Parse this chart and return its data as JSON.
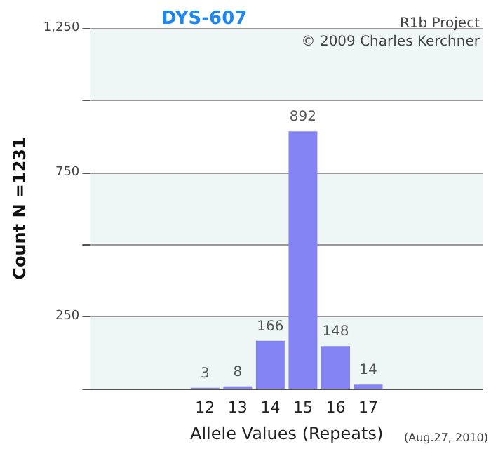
{
  "chart_data": {
    "type": "bar",
    "title": "DYS-607",
    "xlabel": "Allele Values (Repeats)",
    "ylabel": "Count N =1231",
    "categories": [
      null,
      null,
      null,
      "12",
      "13",
      "14",
      "15",
      "16",
      "17",
      null,
      null,
      null
    ],
    "values": [
      null,
      null,
      null,
      3,
      8,
      166,
      892,
      148,
      14,
      null,
      null,
      null
    ],
    "color": "#8484f4",
    "ylim": [
      0,
      1250
    ],
    "yticks": [
      {
        "value": 0,
        "label": null
      },
      250,
      {
        "value": 500,
        "label": null
      },
      {
        "value": 750,
        "label": "750"
      },
      {
        "value": 1000,
        "label": null
      },
      {
        "value": 1250,
        "label": "1,250"
      }
    ],
    "grid": "y",
    "data_labels": true,
    "annotations": [
      "R1b Project",
      "© 2009 Charles Kerchner",
      "(Aug.27, 2010)"
    ]
  }
}
